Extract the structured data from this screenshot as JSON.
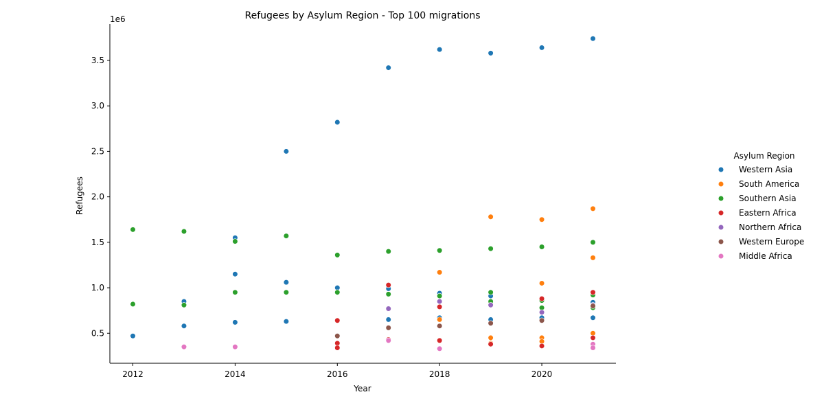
{
  "chart_data": {
    "type": "scatter",
    "title": "Refugees by Asylum Region - Top 100 migrations",
    "xlabel": "Year",
    "ylabel": "Refugees",
    "y_offset_text": "1e6",
    "xlim": [
      2011.55,
      2021.45
    ],
    "ylim": [
      170000,
      3900000
    ],
    "x_ticks": [
      2012,
      2014,
      2016,
      2018,
      2020
    ],
    "x_tick_labels": [
      "2012",
      "2014",
      "2016",
      "2018",
      "2020"
    ],
    "y_ticks": [
      500000,
      1000000,
      1500000,
      2000000,
      2500000,
      3000000,
      3500000
    ],
    "y_tick_labels": [
      "0.5",
      "1.0",
      "1.5",
      "2.0",
      "2.5",
      "3.0",
      "3.5"
    ],
    "legend_title": "Asylum Region",
    "legend_position": "right",
    "grid": false,
    "series": [
      {
        "name": "Western Asia",
        "color": "#1f77b4",
        "points": [
          [
            2012,
            470000
          ],
          [
            2013,
            850000
          ],
          [
            2013,
            580000
          ],
          [
            2014,
            1550000
          ],
          [
            2014,
            1150000
          ],
          [
            2014,
            620000
          ],
          [
            2015,
            2500000
          ],
          [
            2015,
            1060000
          ],
          [
            2015,
            630000
          ],
          [
            2016,
            2820000
          ],
          [
            2016,
            1000000
          ],
          [
            2017,
            3420000
          ],
          [
            2017,
            990000
          ],
          [
            2017,
            650000
          ],
          [
            2018,
            3620000
          ],
          [
            2018,
            940000
          ],
          [
            2018,
            670000
          ],
          [
            2019,
            3580000
          ],
          [
            2019,
            910000
          ],
          [
            2019,
            650000
          ],
          [
            2020,
            3640000
          ],
          [
            2020,
            670000
          ],
          [
            2021,
            3740000
          ],
          [
            2021,
            840000
          ],
          [
            2021,
            670000
          ]
        ]
      },
      {
        "name": "South America",
        "color": "#ff7f0e",
        "points": [
          [
            2018,
            1170000
          ],
          [
            2018,
            650000
          ],
          [
            2019,
            1780000
          ],
          [
            2019,
            450000
          ],
          [
            2019,
            390000
          ],
          [
            2020,
            1750000
          ],
          [
            2020,
            1050000
          ],
          [
            2020,
            450000
          ],
          [
            2020,
            410000
          ],
          [
            2021,
            1870000
          ],
          [
            2021,
            1330000
          ],
          [
            2021,
            500000
          ]
        ]
      },
      {
        "name": "Southern Asia",
        "color": "#2ca02c",
        "points": [
          [
            2012,
            1640000
          ],
          [
            2012,
            820000
          ],
          [
            2013,
            1620000
          ],
          [
            2013,
            810000
          ],
          [
            2014,
            1510000
          ],
          [
            2014,
            950000
          ],
          [
            2015,
            1570000
          ],
          [
            2015,
            950000
          ],
          [
            2016,
            1360000
          ],
          [
            2016,
            950000
          ],
          [
            2017,
            1400000
          ],
          [
            2017,
            930000
          ],
          [
            2018,
            1410000
          ],
          [
            2018,
            910000
          ],
          [
            2019,
            1430000
          ],
          [
            2019,
            950000
          ],
          [
            2019,
            850000
          ],
          [
            2020,
            1450000
          ],
          [
            2020,
            860000
          ],
          [
            2020,
            780000
          ],
          [
            2021,
            1500000
          ],
          [
            2021,
            920000
          ],
          [
            2021,
            780000
          ]
        ]
      },
      {
        "name": "Eastern Africa",
        "color": "#d62728",
        "points": [
          [
            2016,
            640000
          ],
          [
            2016,
            390000
          ],
          [
            2016,
            340000
          ],
          [
            2017,
            1030000
          ],
          [
            2017,
            430000
          ],
          [
            2018,
            790000
          ],
          [
            2018,
            420000
          ],
          [
            2019,
            380000
          ],
          [
            2020,
            880000
          ],
          [
            2020,
            360000
          ],
          [
            2021,
            950000
          ],
          [
            2021,
            450000
          ]
        ]
      },
      {
        "name": "Northern Africa",
        "color": "#9467bd",
        "points": [
          [
            2017,
            770000
          ],
          [
            2018,
            850000
          ],
          [
            2019,
            810000
          ],
          [
            2020,
            730000
          ],
          [
            2021,
            810000
          ]
        ]
      },
      {
        "name": "Western Europe",
        "color": "#8c564b",
        "points": [
          [
            2016,
            470000
          ],
          [
            2017,
            560000
          ],
          [
            2018,
            580000
          ],
          [
            2019,
            610000
          ],
          [
            2020,
            640000
          ],
          [
            2021,
            800000
          ]
        ]
      },
      {
        "name": "Middle Africa",
        "color": "#e377c2",
        "points": [
          [
            2013,
            350000
          ],
          [
            2014,
            350000
          ],
          [
            2017,
            420000
          ],
          [
            2018,
            330000
          ],
          [
            2021,
            380000
          ],
          [
            2021,
            340000
          ]
        ]
      }
    ]
  }
}
